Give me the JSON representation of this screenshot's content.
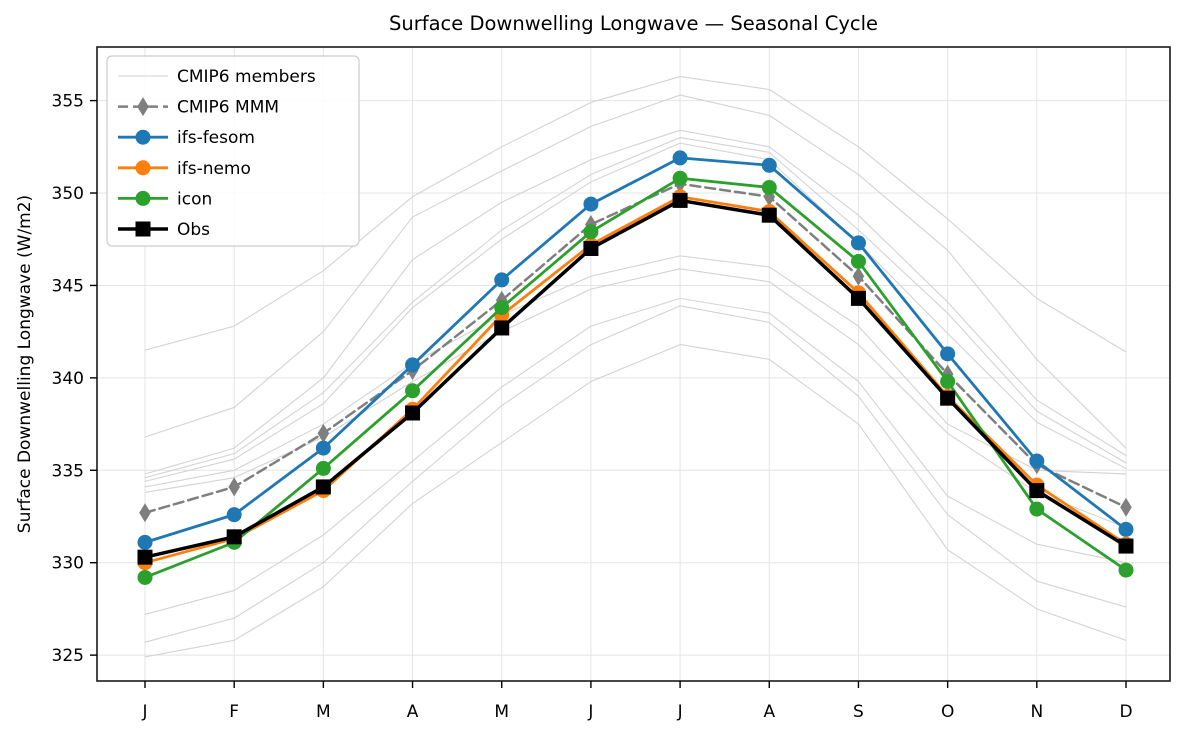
{
  "chart_data": {
    "type": "line",
    "title": "Surface Downwelling Longwave — Seasonal Cycle",
    "ylabel": "Surface Downwelling Longwave (W/m2)",
    "xlabel": "",
    "categories": [
      "J",
      "F",
      "M",
      "A",
      "M",
      "J",
      "J",
      "A",
      "S",
      "O",
      "N",
      "D"
    ],
    "ylim": [
      323.6,
      357.9
    ],
    "yticks": [
      325,
      330,
      335,
      340,
      345,
      350,
      355
    ],
    "grid": true,
    "legend_position": "upper-left",
    "grid_color": "#e4e4e4",
    "members": {
      "label": "CMIP6 members",
      "color": "#d3d3d3",
      "line_width": 1.1,
      "series": [
        [
          341.5,
          342.8,
          345.8,
          349.8,
          352.5,
          354.9,
          356.3,
          355.6,
          352.5,
          348.6,
          344.3,
          341.4
        ],
        [
          336.8,
          338.4,
          342.5,
          348.7,
          351.2,
          353.6,
          355.3,
          354.2,
          351.0,
          346.9,
          341.0,
          336.2
        ],
        [
          334.8,
          336.2,
          340.0,
          346.4,
          349.5,
          351.8,
          353.4,
          352.5,
          348.8,
          344.1,
          338.8,
          335.8
        ],
        [
          334.6,
          335.9,
          339.2,
          344.1,
          348.0,
          351.0,
          353.0,
          352.2,
          348.0,
          343.5,
          338.2,
          335.4
        ],
        [
          334.4,
          335.6,
          338.6,
          343.8,
          347.5,
          350.6,
          352.7,
          351.8,
          347.3,
          342.4,
          337.6,
          335.1
        ],
        [
          334.1,
          335.0,
          337.5,
          340.8,
          343.4,
          345.5,
          346.6,
          346.0,
          342.8,
          337.5,
          335.0,
          334.8
        ],
        [
          333.8,
          334.6,
          336.8,
          339.8,
          342.5,
          344.8,
          345.9,
          345.2,
          341.8,
          337.0,
          333.8,
          331.9
        ],
        [
          327.2,
          328.5,
          331.5,
          335.5,
          339.5,
          342.8,
          344.3,
          343.5,
          339.8,
          333.6,
          331.0,
          330.0
        ],
        [
          325.7,
          327.0,
          330.0,
          334.4,
          338.5,
          341.8,
          343.9,
          343.0,
          339.0,
          332.6,
          329.0,
          327.6
        ],
        [
          324.9,
          325.8,
          328.7,
          333.2,
          336.5,
          339.8,
          341.8,
          341.0,
          337.5,
          330.7,
          327.5,
          325.8
        ]
      ]
    },
    "series": [
      {
        "name": "CMIP6 MMM",
        "color": "#7f7f7f",
        "marker": "thin-diamond",
        "dash": "10 5",
        "line_width": 2.5,
        "values": [
          332.7,
          334.1,
          337.0,
          340.4,
          344.2,
          348.3,
          350.5,
          349.8,
          345.5,
          340.2,
          335.3,
          333.0
        ]
      },
      {
        "name": "ifs-fesom",
        "color": "#1f77b4",
        "marker": "circle",
        "dash": "",
        "line_width": 2.8,
        "values": [
          331.1,
          332.6,
          336.2,
          340.7,
          345.3,
          349.4,
          351.9,
          351.5,
          347.3,
          341.3,
          335.5,
          331.8
        ]
      },
      {
        "name": "ifs-nemo",
        "color": "#ff7f0e",
        "marker": "circle",
        "dash": "",
        "line_width": 2.8,
        "values": [
          330.0,
          331.3,
          333.9,
          338.3,
          343.4,
          347.2,
          349.8,
          349.0,
          344.6,
          339.0,
          334.2,
          331.0
        ]
      },
      {
        "name": "icon",
        "color": "#2ca02c",
        "marker": "circle",
        "dash": "",
        "line_width": 2.8,
        "values": [
          329.2,
          331.1,
          335.1,
          339.3,
          343.8,
          347.9,
          350.8,
          350.3,
          346.3,
          339.8,
          332.9,
          329.6
        ]
      },
      {
        "name": "Obs",
        "color": "#000000",
        "marker": "square",
        "dash": "",
        "line_width": 3.5,
        "values": [
          330.3,
          331.4,
          334.1,
          338.1,
          342.7,
          347.0,
          349.6,
          348.8,
          344.3,
          338.9,
          333.9,
          330.9
        ]
      }
    ]
  }
}
